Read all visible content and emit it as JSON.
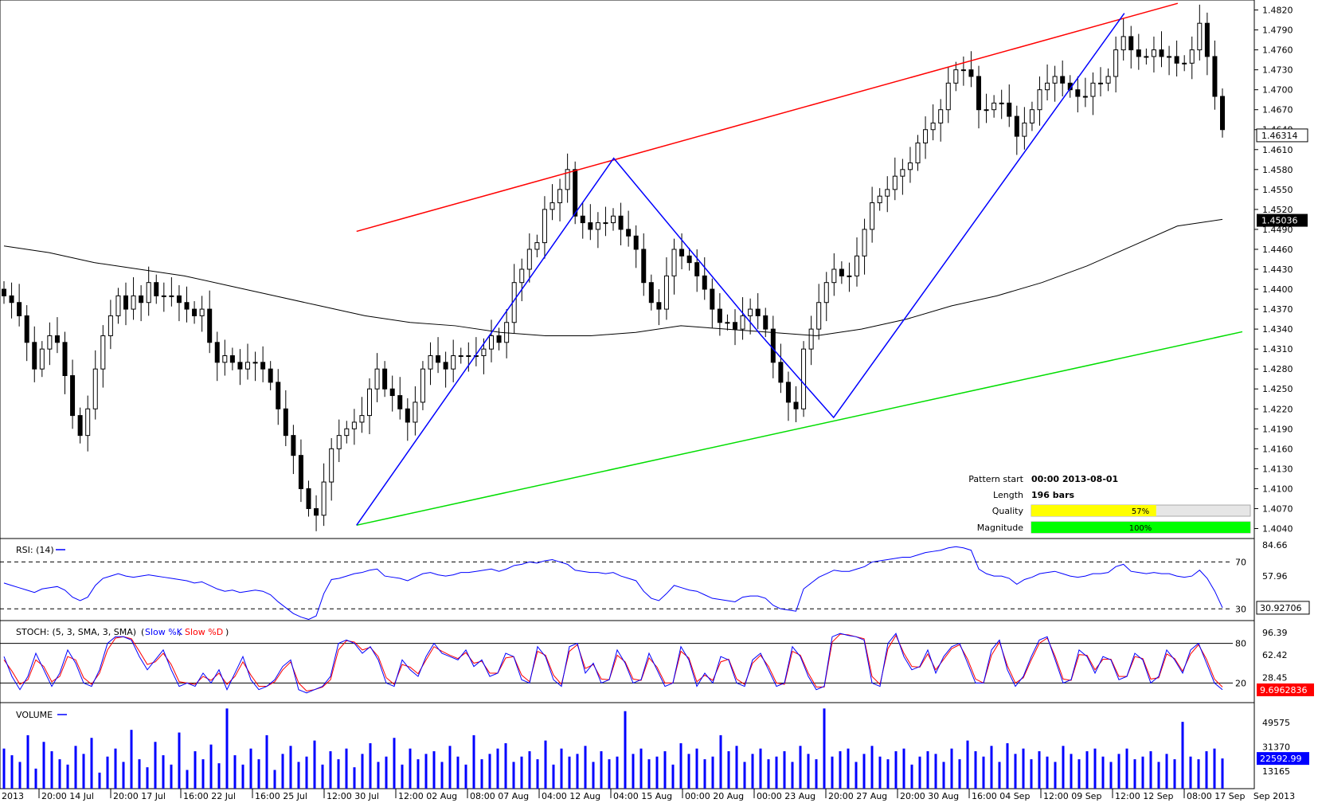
{
  "chart_data": {
    "type": "candlestick",
    "main": {
      "price_ticks": [
        "1.4820",
        "1.4790",
        "1.4760",
        "1.4730",
        "1.4700",
        "1.4670",
        "1.4640",
        "1.4610",
        "1.4580",
        "1.4550",
        "1.4520",
        "1.4490",
        "1.4460",
        "1.4430",
        "1.4400",
        "1.4370",
        "1.4340",
        "1.4310",
        "1.4280",
        "1.4250",
        "1.4220",
        "1.4190",
        "1.4160",
        "1.4130",
        "1.4100",
        "1.4070",
        "1.4040"
      ],
      "price_range": [
        1.4025,
        1.4835
      ],
      "current_price_label": "1.46314",
      "ma_price_label": "1.45036",
      "time_labels": [
        "2013",
        "20:00 14 Jul",
        "20:00 17 Jul",
        "16:00 22 Jul",
        "16:00 25 Jul",
        "12:00 30 Jul",
        "12:00 02 Aug",
        "08:00 07 Aug",
        "04:00 12 Aug",
        "04:00 15 Aug",
        "00:00 20 Aug",
        "00:00 23 Aug",
        "20:00 27 Aug",
        "20:00 30 Aug",
        "16:00 04 Sep",
        "12:00 09 Sep",
        "12:00 12 Sep",
        "08:00 17 Sep",
        "Sep 2013"
      ],
      "closes": [
        1.439,
        1.438,
        1.436,
        1.432,
        1.428,
        1.431,
        1.433,
        1.432,
        1.427,
        1.421,
        1.418,
        1.422,
        1.428,
        1.433,
        1.436,
        1.439,
        1.437,
        1.439,
        1.438,
        1.441,
        1.439,
        1.439,
        1.439,
        1.438,
        1.437,
        1.436,
        1.437,
        1.432,
        1.429,
        1.43,
        1.429,
        1.428,
        1.429,
        1.429,
        1.428,
        1.426,
        1.422,
        1.418,
        1.415,
        1.41,
        1.407,
        1.406,
        1.411,
        1.416,
        1.418,
        1.419,
        1.42,
        1.421,
        1.425,
        1.428,
        1.425,
        1.424,
        1.422,
        1.42,
        1.423,
        1.428,
        1.43,
        1.429,
        1.428,
        1.43,
        1.43,
        1.43,
        1.43,
        1.431,
        1.433,
        1.432,
        1.435,
        1.441,
        1.443,
        1.446,
        1.447,
        1.452,
        1.453,
        1.455,
        1.458,
        1.451,
        1.45,
        1.449,
        1.45,
        1.45,
        1.451,
        1.449,
        1.448,
        1.446,
        1.441,
        1.438,
        1.437,
        1.442,
        1.446,
        1.445,
        1.444,
        1.442,
        1.44,
        1.437,
        1.435,
        1.435,
        1.434,
        1.436,
        1.437,
        1.436,
        1.434,
        1.429,
        1.426,
        1.423,
        1.422,
        1.431,
        1.434,
        1.438,
        1.441,
        1.443,
        1.442,
        1.442,
        1.445,
        1.449,
        1.453,
        1.454,
        1.455,
        1.457,
        1.458,
        1.459,
        1.462,
        1.464,
        1.465,
        1.467,
        1.471,
        1.473,
        1.473,
        1.472,
        1.467,
        1.467,
        1.468,
        1.468,
        1.466,
        1.463,
        1.465,
        1.467,
        1.47,
        1.471,
        1.472,
        1.471,
        1.47,
        1.469,
        1.469,
        1.471,
        1.471,
        1.472,
        1.476,
        1.478,
        1.476,
        1.475,
        1.475,
        1.476,
        1.475,
        1.475,
        1.474,
        1.474,
        1.476,
        1.48,
        1.475,
        1.469,
        1.464
      ],
      "ma_line": [
        1.4465,
        1.4455,
        1.444,
        1.443,
        1.442,
        1.4405,
        1.439,
        1.4375,
        1.436,
        1.435,
        1.4345,
        1.4335,
        1.433,
        1.433,
        1.4335,
        1.4345,
        1.434,
        1.4335,
        1.433,
        1.434,
        1.4355,
        1.4375,
        1.439,
        1.441,
        1.4435,
        1.4465,
        1.4495,
        1.4505
      ],
      "resistance_line": [
        [
          0.287,
          1.4487
        ],
        [
          0.948,
          1.483
        ]
      ],
      "support_line": [
        [
          0.287,
          1.4045
        ],
        [
          1.0,
          1.4336
        ]
      ],
      "zigzag": [
        [
          0.287,
          1.4045
        ],
        [
          0.494,
          1.4597
        ],
        [
          0.613,
          1.433
        ],
        [
          0.671,
          1.4207
        ],
        [
          0.905,
          1.4815
        ]
      ],
      "pattern_info": {
        "start_label": "Pattern start",
        "start_value": "00:00 2013-08-01",
        "length_label": "Length",
        "length_value": "196 bars",
        "quality_label": "Quality",
        "quality_value": "57%",
        "quality_fraction": 0.57,
        "magnitude_label": "Magnitude",
        "magnitude_value": "100%",
        "magnitude_fraction": 1.0
      }
    },
    "rsi": {
      "label": "RSI: (14)",
      "ticks": [
        "84.66",
        "57.96"
      ],
      "levels": [
        "70",
        "30"
      ],
      "current_label": "30.92706",
      "range": [
        20,
        90
      ],
      "values": [
        52,
        50,
        48,
        46,
        44,
        47,
        48,
        49,
        46,
        40,
        37,
        40,
        50,
        56,
        58,
        60,
        58,
        57,
        58,
        59,
        58,
        57,
        56,
        55,
        54,
        52,
        53,
        50,
        47,
        45,
        46,
        44,
        45,
        46,
        45,
        42,
        36,
        31,
        26,
        23,
        21,
        24,
        43,
        55,
        56,
        58,
        60,
        61,
        63,
        64,
        58,
        57,
        56,
        54,
        57,
        60,
        61,
        59,
        58,
        59,
        61,
        61,
        62,
        63,
        64,
        62,
        64,
        67,
        68,
        70,
        69,
        71,
        72,
        70,
        68,
        63,
        62,
        61,
        61,
        60,
        61,
        58,
        56,
        54,
        45,
        39,
        37,
        43,
        50,
        48,
        46,
        45,
        42,
        39,
        38,
        37,
        36,
        40,
        41,
        41,
        39,
        33,
        30,
        29,
        28,
        47,
        52,
        57,
        60,
        63,
        62,
        62,
        64,
        66,
        70,
        71,
        72,
        73,
        74,
        74,
        76,
        78,
        79,
        80,
        82,
        83,
        82,
        80,
        64,
        60,
        58,
        58,
        56,
        51,
        55,
        57,
        60,
        61,
        62,
        60,
        58,
        57,
        58,
        60,
        60,
        61,
        66,
        68,
        62,
        61,
        60,
        61,
        60,
        60,
        58,
        57,
        58,
        63,
        56,
        45,
        31
      ]
    },
    "stoch": {
      "label": "STOCH: (5, 3, SMA, 3, SMA)",
      "k_label": "Slow %K",
      "d_label": "Slow %D",
      "ticks": [
        "96.39",
        "62.42",
        "28.45"
      ],
      "levels": [
        "80",
        "20"
      ],
      "current_label": "9.6962836",
      "range": [
        0,
        100
      ],
      "k": [
        60,
        30,
        10,
        30,
        65,
        40,
        15,
        35,
        70,
        50,
        20,
        15,
        40,
        80,
        90,
        90,
        85,
        60,
        40,
        55,
        70,
        40,
        15,
        20,
        15,
        35,
        20,
        40,
        10,
        35,
        60,
        25,
        10,
        15,
        25,
        45,
        55,
        10,
        5,
        10,
        15,
        30,
        80,
        85,
        80,
        65,
        75,
        55,
        20,
        15,
        55,
        40,
        30,
        60,
        80,
        65,
        60,
        55,
        70,
        45,
        55,
        30,
        35,
        65,
        60,
        25,
        20,
        75,
        60,
        25,
        15,
        75,
        80,
        35,
        50,
        20,
        25,
        70,
        50,
        20,
        25,
        65,
        40,
        15,
        20,
        75,
        55,
        15,
        35,
        20,
        60,
        55,
        20,
        15,
        55,
        65,
        40,
        15,
        20,
        75,
        60,
        30,
        10,
        15,
        90,
        95,
        92,
        90,
        85,
        20,
        15,
        80,
        95,
        60,
        40,
        45,
        70,
        35,
        60,
        75,
        80,
        50,
        20,
        20,
        70,
        85,
        40,
        15,
        30,
        60,
        85,
        90,
        55,
        20,
        25,
        70,
        60,
        35,
        60,
        55,
        25,
        30,
        65,
        55,
        20,
        30,
        70,
        55,
        35,
        70,
        80,
        50,
        20,
        10
      ],
      "d": [
        55,
        38,
        18,
        25,
        55,
        45,
        22,
        30,
        60,
        55,
        28,
        18,
        35,
        70,
        88,
        90,
        87,
        68,
        48,
        52,
        65,
        48,
        22,
        20,
        18,
        30,
        24,
        35,
        18,
        30,
        52,
        32,
        15,
        15,
        22,
        40,
        52,
        20,
        8,
        10,
        14,
        25,
        70,
        84,
        82,
        70,
        74,
        60,
        28,
        18,
        48,
        44,
        34,
        55,
        75,
        68,
        62,
        57,
        66,
        50,
        53,
        35,
        35,
        58,
        60,
        32,
        22,
        68,
        62,
        32,
        18,
        68,
        78,
        42,
        48,
        26,
        25,
        62,
        52,
        26,
        24,
        58,
        44,
        20,
        20,
        68,
        58,
        22,
        32,
        24,
        52,
        56,
        26,
        18,
        50,
        62,
        45,
        20,
        18,
        68,
        62,
        35,
        14,
        14,
        82,
        94,
        93,
        90,
        87,
        30,
        18,
        72,
        92,
        65,
        45,
        44,
        64,
        40,
        56,
        72,
        78,
        56,
        26,
        20,
        62,
        82,
        46,
        20,
        28,
        55,
        80,
        88,
        60,
        26,
        24,
        63,
        62,
        40,
        56,
        56,
        30,
        30,
        60,
        57,
        26,
        28,
        64,
        57,
        38,
        64,
        78,
        56,
        26,
        14
      ]
    },
    "volume": {
      "label": "VOLUME",
      "ticks": [
        "49575",
        "31370",
        "13165"
      ],
      "current_label": "22592.99",
      "max": 62000,
      "values": [
        30000,
        25000,
        20000,
        40000,
        15000,
        35000,
        28000,
        22000,
        18000,
        32000,
        26000,
        38000,
        12000,
        24000,
        30000,
        20000,
        44000,
        22000,
        16000,
        35000,
        25000,
        18000,
        42000,
        14000,
        28000,
        22000,
        33000,
        19000,
        60000,
        25000,
        18000,
        30000,
        22000,
        40000,
        14000,
        26000,
        32000,
        20000,
        24000,
        36000,
        18000,
        28000,
        22000,
        30000,
        16000,
        26000,
        34000,
        20000,
        24000,
        38000,
        18000,
        30000,
        22000,
        26000,
        28000,
        20000,
        32000,
        24000,
        18000,
        40000,
        22000,
        26000,
        30000,
        34000,
        20000,
        24000,
        28000,
        22000,
        36000,
        18000,
        30000,
        24000,
        26000,
        32000,
        20000,
        28000,
        22000,
        24000,
        58000,
        26000,
        30000,
        22000,
        24000,
        28000,
        18000,
        34000,
        26000,
        30000,
        22000,
        24000,
        40000,
        28000,
        32000,
        20000,
        26000,
        30000,
        22000,
        24000,
        28000,
        20000,
        32000,
        26000,
        22000,
        60000,
        24000,
        28000,
        30000,
        20000,
        26000,
        32000,
        24000,
        22000,
        28000,
        30000,
        18000,
        24000,
        28000,
        26000,
        20000,
        30000,
        22000,
        36000,
        28000,
        24000,
        32000,
        20000,
        34000,
        26000,
        30000,
        22000,
        28000,
        24000,
        20000,
        32000,
        26000,
        22000,
        28000,
        30000,
        24000,
        20000,
        26000,
        30000,
        22000,
        24000,
        28000,
        20000,
        26000,
        22000,
        50000,
        24000,
        22000,
        28000,
        30000,
        22592
      ]
    }
  }
}
